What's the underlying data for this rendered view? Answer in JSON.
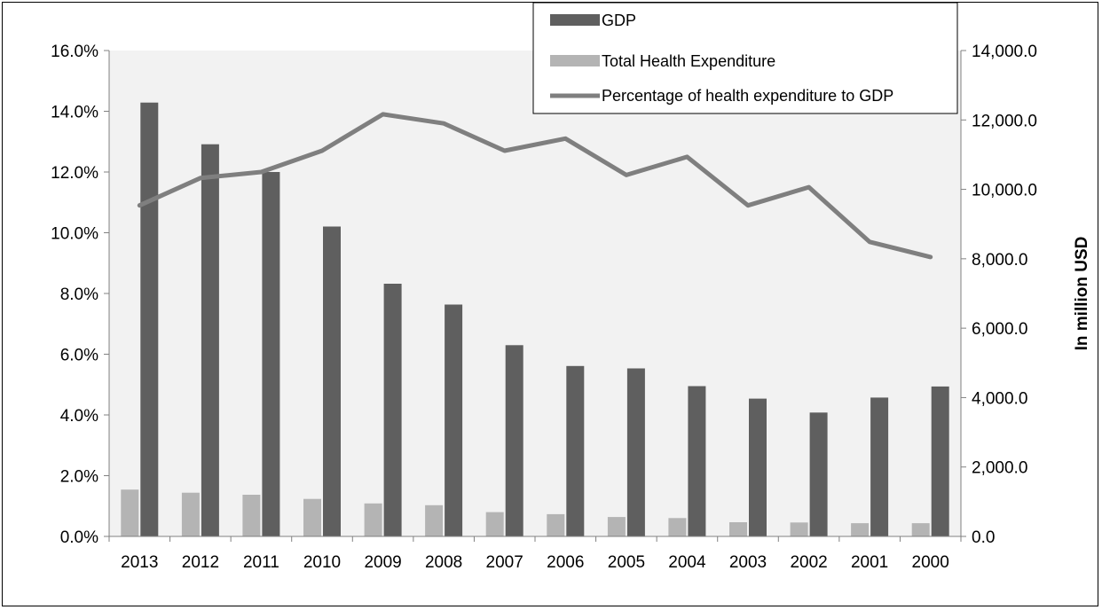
{
  "chart_data": {
    "type": "bar",
    "categories": [
      "2013",
      "2012",
      "2011",
      "2010",
      "2009",
      "2008",
      "2007",
      "2006",
      "2005",
      "2004",
      "2003",
      "2002",
      "2001",
      "2000"
    ],
    "series": [
      {
        "name": "GDP",
        "type": "bar",
        "axis": "right",
        "color": "#5f5f5f",
        "values": [
          12500,
          11300,
          10500,
          8930,
          7280,
          6680,
          5510,
          4910,
          4840,
          4330,
          3970,
          3570,
          4000,
          4320
        ]
      },
      {
        "name": "Total Health Expenditure",
        "type": "bar",
        "axis": "right",
        "color": "#b4b4b4",
        "values": [
          1350,
          1260,
          1200,
          1080,
          950,
          900,
          700,
          640,
          560,
          530,
          410,
          400,
          380,
          380
        ]
      },
      {
        "name": "Percentage of health expenditure to GDP",
        "type": "line",
        "axis": "left",
        "color": "#7f7f7f",
        "values": [
          10.9,
          11.8,
          12.0,
          12.7,
          13.9,
          13.6,
          12.7,
          13.1,
          11.9,
          12.5,
          10.9,
          11.5,
          9.7,
          9.2
        ]
      }
    ],
    "y_left": {
      "min": 0,
      "max": 16,
      "step": 2,
      "tick_labels": [
        "0.0%",
        "2.0%",
        "4.0%",
        "6.0%",
        "8.0%",
        "10.0%",
        "12.0%",
        "14.0%",
        "16.0%"
      ]
    },
    "y_right": {
      "label": "In million USD",
      "min": 0,
      "max": 14000,
      "step": 2000,
      "tick_labels": [
        "0.0",
        "2,000.0",
        "4,000.0",
        "6,000.0",
        "8,000.0",
        "10,000.0",
        "12,000.0",
        "14,000.0"
      ]
    },
    "legend_position": "top-right",
    "plot_background": "#f2f2f2",
    "grid": false
  }
}
